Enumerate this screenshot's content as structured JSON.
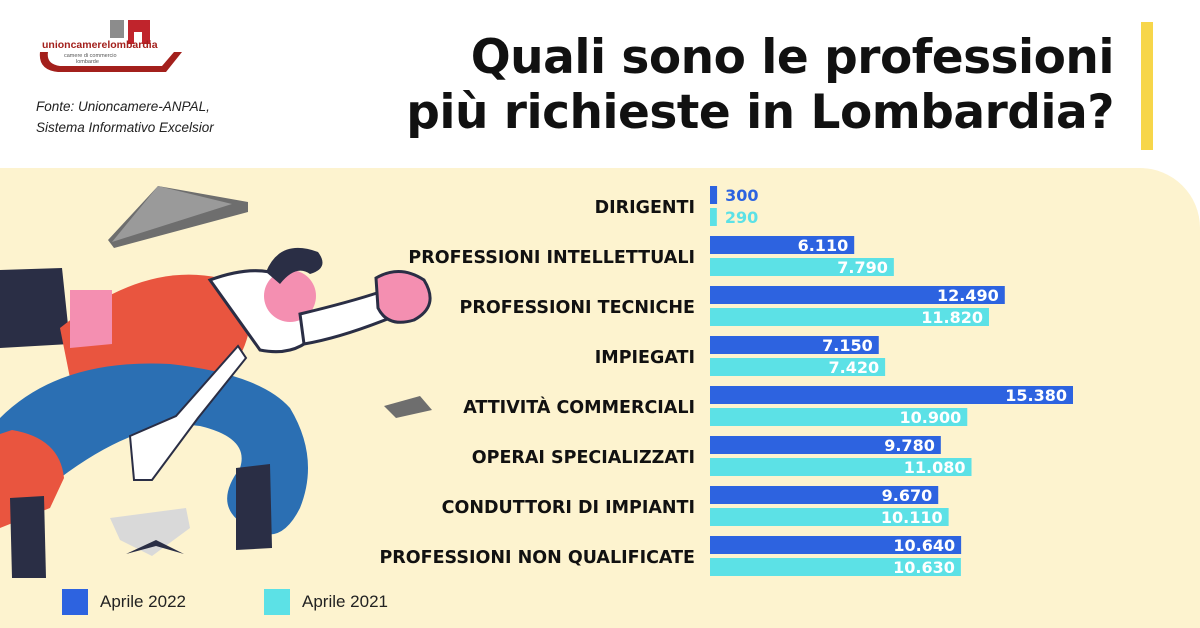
{
  "header": {
    "title_line1": "Quali sono le professioni",
    "title_line2": "più richieste in Lombardia?",
    "source_line1": "Fonte: Unioncamere-ANPAL,",
    "source_line2": "Sistema Informativo Excelsior"
  },
  "logo": {
    "name": "unioncamerelombardia",
    "subtitle_line1": "camere di commercio",
    "subtitle_line2": "lombarde"
  },
  "colors": {
    "series_2022": "#2d63e0",
    "series_2021": "#5ce1e6",
    "panel": "#fdf3cf",
    "accent": "#f7d64a"
  },
  "chart_data": {
    "type": "bar",
    "orientation": "horizontal",
    "title": "Quali sono le professioni più richieste in Lombardia?",
    "categories": [
      "DIRIGENTI",
      "PROFESSIONI INTELLETTUALI",
      "PROFESSIONI TECNICHE",
      "IMPIEGATI",
      "ATTIVITÀ COMMERCIALI",
      "OPERAI SPECIALIZZATI",
      "CONDUTTORI DI IMPIANTI",
      "PROFESSIONI NON QUALIFICATE"
    ],
    "series": [
      {
        "name": "Aprile 2022",
        "values": [
          300,
          6110,
          12490,
          7150,
          15380,
          9780,
          9670,
          10640
        ],
        "labels": [
          "300",
          "6.110",
          "12.490",
          "7.150",
          "15.380",
          "9.780",
          "9.670",
          "10.640"
        ]
      },
      {
        "name": "Aprile 2021",
        "values": [
          290,
          7790,
          11820,
          7420,
          10900,
          11080,
          10110,
          10630
        ],
        "labels": [
          "290",
          "7.790",
          "11.820",
          "7.420",
          "10.900",
          "11.080",
          "10.110",
          "10.630"
        ]
      }
    ],
    "legend": "bottom-left",
    "grid": false
  }
}
